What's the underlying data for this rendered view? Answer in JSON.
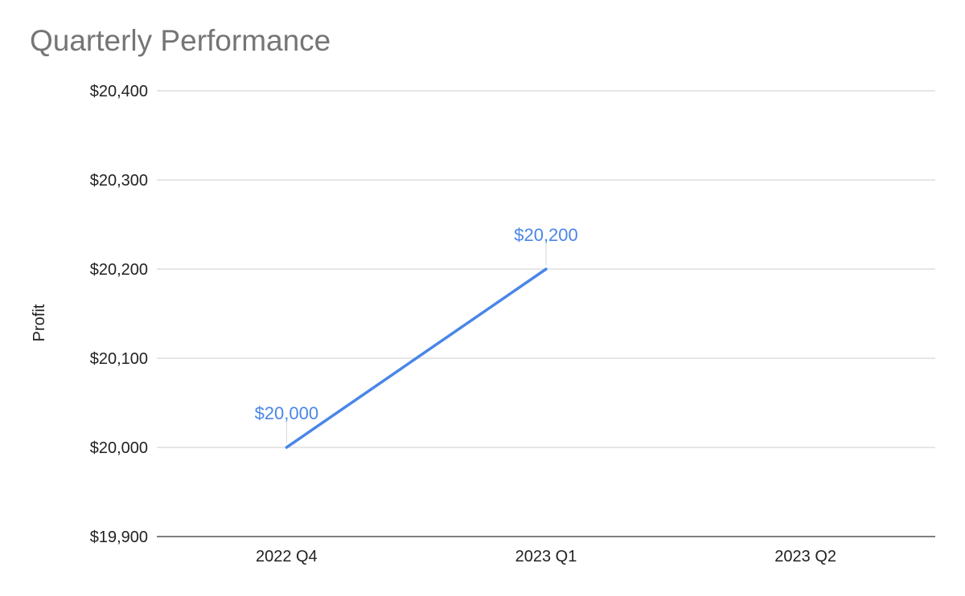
{
  "chart_data": {
    "type": "line",
    "title": "Quarterly Performance",
    "xlabel": "",
    "ylabel": "Profit",
    "categories": [
      "2022 Q4",
      "2023 Q1",
      "2023 Q2"
    ],
    "series": [
      {
        "values": [
          20000,
          20200,
          null
        ],
        "color": "#4a86e8",
        "data_labels": [
          "$20,000",
          "$20,200",
          null
        ]
      }
    ],
    "ylim": [
      19900,
      20400
    ],
    "yticks": [
      19900,
      20000,
      20100,
      20200,
      20300,
      20400
    ],
    "ytick_labels": [
      "$19,900",
      "$20,000",
      "$20,100",
      "$20,200",
      "$20,300",
      "$20,400"
    ],
    "grid": true,
    "legend": "none"
  }
}
